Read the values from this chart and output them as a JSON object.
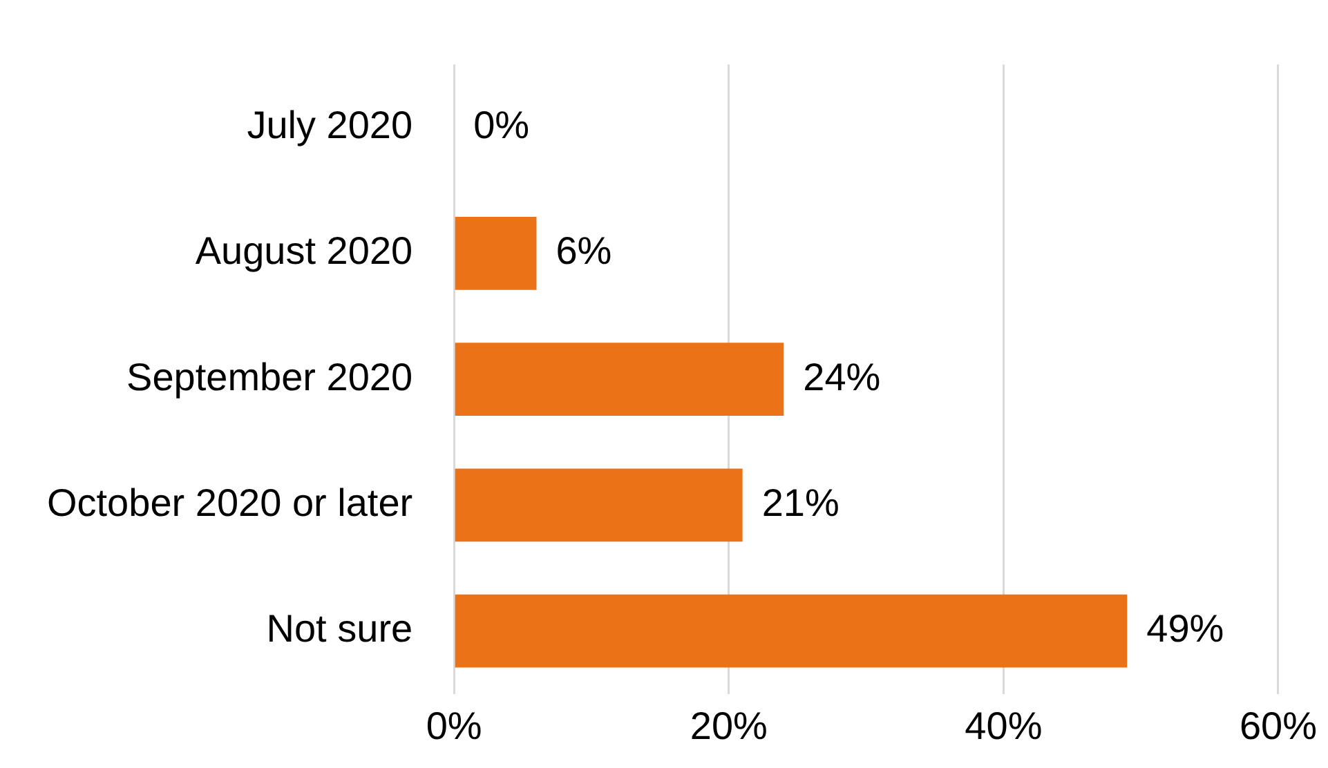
{
  "chart_data": {
    "type": "bar",
    "orientation": "horizontal",
    "categories": [
      "July 2020",
      "August 2020",
      "September 2020",
      "October 2020 or later",
      "Not sure"
    ],
    "values": [
      0,
      6,
      24,
      21,
      49
    ],
    "color": "#ec7217",
    "value_labels": [
      "0%",
      "6%",
      "24%",
      "21%",
      "49%"
    ],
    "xlim": [
      0,
      60
    ],
    "xticks": [
      {
        "value": 0,
        "label": "0%"
      },
      {
        "value": 20,
        "label": "20%"
      },
      {
        "value": 40,
        "label": "40%"
      },
      {
        "value": 60,
        "label": "60%"
      }
    ],
    "grid": "x",
    "legend": false
  }
}
